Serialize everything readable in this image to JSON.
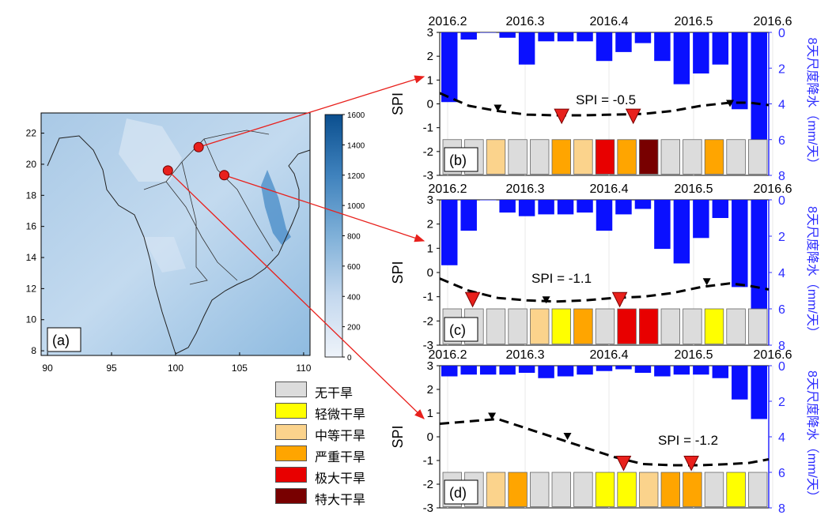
{
  "colors": {
    "precip_bar": "#0a10ff",
    "right_axis": "#2a2aff",
    "arrow": "#e8201c",
    "drought": {
      "none": "#dcdcdc",
      "slight": "#ffff00",
      "moderate": "#fbd38c",
      "severe": "#ffa500",
      "extreme": "#e80000",
      "exceptional": "#780000"
    }
  },
  "map": {
    "panel_label": "(a)",
    "x_ticks": [
      "90",
      "95",
      "100",
      "105",
      "110"
    ],
    "y_ticks": [
      "8",
      "10",
      "12",
      "14",
      "16",
      "18",
      "20",
      "22"
    ],
    "colorbar_ticks": [
      "0",
      "200",
      "400",
      "600",
      "800",
      "1000",
      "1200",
      "1400",
      "1600"
    ],
    "colorbar_range": [
      0,
      1600
    ],
    "stations": [
      {
        "lon": 99.4,
        "lat": 19.6,
        "target": "d"
      },
      {
        "lon": 101.8,
        "lat": 21.1,
        "target": "b"
      },
      {
        "lon": 103.8,
        "lat": 19.3,
        "target": "c"
      }
    ]
  },
  "legend": {
    "items": [
      {
        "key": "none",
        "label": "无干旱"
      },
      {
        "key": "slight",
        "label": "轻微干旱"
      },
      {
        "key": "moderate",
        "label": "中等干旱"
      },
      {
        "key": "severe",
        "label": "严重干旱"
      },
      {
        "key": "extreme",
        "label": "极大干旱"
      },
      {
        "key": "exceptional",
        "label": "特大干旱"
      }
    ]
  },
  "chart_data": [
    {
      "type": "bar",
      "panel": "(b)",
      "x_tick_labels": [
        "2016.2",
        "2016.3",
        "2016.4",
        "2016.5",
        "2016.6"
      ],
      "left_axis": {
        "label": "SPI",
        "ticks": [
          "3",
          "2",
          "1",
          "0",
          "-1",
          "-2",
          "-3"
        ],
        "range": [
          -3,
          3
        ]
      },
      "right_axis": {
        "label": "8天尺度降水（mm/天）",
        "ticks": [
          "0",
          "2",
          "4",
          "6",
          "8"
        ],
        "range": [
          0,
          8
        ]
      },
      "annotation": "SPI = -0.5",
      "precip_mm_per_day": [
        3.9,
        0.4,
        0.0,
        0.3,
        1.8,
        0.5,
        0.5,
        0.5,
        1.6,
        1.1,
        0.6,
        1.6,
        2.9,
        2.3,
        1.8,
        4.3,
        7.2
      ],
      "spi_curve": [
        [
          0,
          0.45
        ],
        [
          1.5,
          -0.08
        ],
        [
          3,
          -0.3
        ],
        [
          4.5,
          -0.45
        ],
        [
          6,
          -0.48
        ],
        [
          7.5,
          -0.48
        ],
        [
          9,
          -0.45
        ],
        [
          10.5,
          -0.42
        ],
        [
          12,
          -0.3
        ],
        [
          13.5,
          -0.08
        ],
        [
          15,
          0.05
        ],
        [
          16,
          0.05
        ],
        [
          17,
          -0.05
        ]
      ],
      "spi_markers": [
        {
          "x": 3,
          "y": -0.2,
          "kind": "small"
        },
        {
          "x": 15,
          "y": 0.0,
          "kind": "small"
        },
        {
          "x": 6.3,
          "y": -0.55,
          "kind": "large"
        },
        {
          "x": 10,
          "y": -0.55,
          "kind": "large"
        }
      ],
      "drought_class": [
        "none",
        "none",
        "moderate",
        "none",
        "none",
        "severe",
        "moderate",
        "extreme",
        "severe",
        "exceptional",
        "none",
        "none",
        "severe",
        "none",
        "none"
      ]
    },
    {
      "type": "bar",
      "panel": "(c)",
      "x_tick_labels": [
        "2016.2",
        "2016.3",
        "2016.4",
        "2016.5",
        "2016.6"
      ],
      "left_axis": {
        "label": "SPI",
        "ticks": [
          "3",
          "2",
          "1",
          "0",
          "-1",
          "-2",
          "-3"
        ],
        "range": [
          -3,
          3
        ]
      },
      "right_axis": {
        "label": "8天尺度降水（mm/天）",
        "ticks": [
          "0",
          "2",
          "4",
          "6",
          "8"
        ],
        "range": [
          0,
          8
        ]
      },
      "annotation": "SPI = -1.1",
      "precip_mm_per_day": [
        3.6,
        1.7,
        0.0,
        0.7,
        0.9,
        0.8,
        0.8,
        0.7,
        1.7,
        0.8,
        0.5,
        2.7,
        3.5,
        2.1,
        1.0,
        4.8,
        7.3
      ],
      "spi_curve": [
        [
          0,
          -0.25
        ],
        [
          1.5,
          -0.75
        ],
        [
          3,
          -1.05
        ],
        [
          4.5,
          -1.15
        ],
        [
          6,
          -1.2
        ],
        [
          7.5,
          -1.15
        ],
        [
          9,
          -1.05
        ],
        [
          10.5,
          -1.0
        ],
        [
          12,
          -0.85
        ],
        [
          13.5,
          -0.6
        ],
        [
          15,
          -0.45
        ],
        [
          16,
          -0.55
        ],
        [
          17,
          -0.7
        ]
      ],
      "spi_markers": [
        {
          "x": 5.5,
          "y": -1.15,
          "kind": "small"
        },
        {
          "x": 13.8,
          "y": -0.4,
          "kind": "small"
        },
        {
          "x": 1.7,
          "y": -1.15,
          "kind": "large"
        },
        {
          "x": 9.3,
          "y": -1.15,
          "kind": "large"
        }
      ],
      "drought_class": [
        "none",
        "none",
        "none",
        "none",
        "moderate",
        "slight",
        "severe",
        "none",
        "extreme",
        "extreme",
        "none",
        "none",
        "slight",
        "none",
        "none"
      ]
    },
    {
      "type": "bar",
      "panel": "(d)",
      "x_tick_labels": [
        "2016.2",
        "2016.3",
        "2016.4",
        "2016.5",
        "2016.6"
      ],
      "left_axis": {
        "label": "SPI",
        "ticks": [
          "3",
          "2",
          "1",
          "0",
          "-1",
          "-2",
          "-3"
        ],
        "range": [
          -3,
          3
        ]
      },
      "right_axis": {
        "label": "8天尺度降水（mm/天）",
        "ticks": [
          "0",
          "2",
          "4",
          "6",
          "8"
        ],
        "range": [
          0,
          8
        ]
      },
      "annotation": "SPI = -1.2",
      "precip_mm_per_day": [
        0.6,
        0.5,
        0.5,
        0.5,
        0.4,
        0.7,
        0.6,
        0.5,
        0.3,
        0.2,
        0.4,
        0.6,
        0.5,
        0.5,
        0.7,
        1.9,
        3.0
      ],
      "spi_curve": [
        [
          0,
          0.55
        ],
        [
          1.5,
          0.65
        ],
        [
          3,
          0.75
        ],
        [
          4.5,
          0.35
        ],
        [
          6,
          -0.05
        ],
        [
          7.5,
          -0.45
        ],
        [
          9,
          -0.85
        ],
        [
          10.5,
          -1.15
        ],
        [
          12,
          -1.2
        ],
        [
          13.5,
          -1.2
        ],
        [
          15,
          -1.15
        ],
        [
          16,
          -1.1
        ],
        [
          17,
          -0.95
        ]
      ],
      "spi_markers": [
        {
          "x": 2.7,
          "y": 0.85,
          "kind": "small"
        },
        {
          "x": 6.6,
          "y": 0.0,
          "kind": "small"
        },
        {
          "x": 9.5,
          "y": -1.15,
          "kind": "large"
        },
        {
          "x": 13.0,
          "y": -1.15,
          "kind": "large"
        }
      ],
      "drought_class": [
        "none",
        "none",
        "moderate",
        "severe",
        "none",
        "none",
        "none",
        "slight",
        "slight",
        "moderate",
        "severe",
        "severe",
        "none",
        "slight",
        "none"
      ]
    }
  ]
}
